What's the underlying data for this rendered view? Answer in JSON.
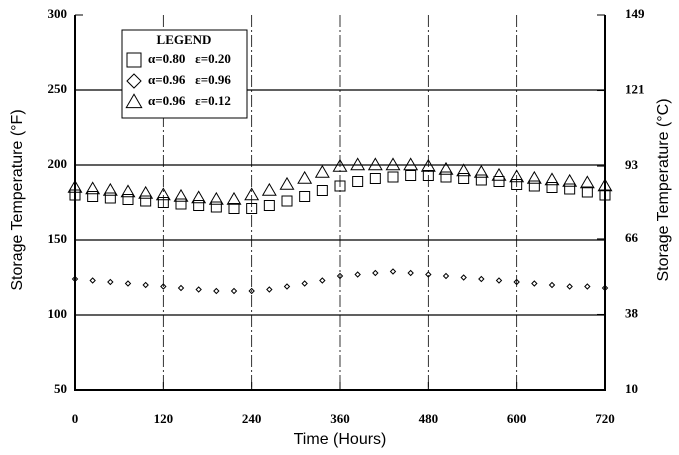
{
  "chart_data": {
    "type": "scatter",
    "x_label": "Time (Hours)",
    "y_label": "Storage Temperature (°F)",
    "y2_label": "Storage Temperature (°C)",
    "legend_title": "LEGEND",
    "x": [
      0,
      24,
      48,
      72,
      96,
      120,
      144,
      168,
      192,
      216,
      240,
      264,
      288,
      312,
      336,
      360,
      384,
      408,
      432,
      456,
      480,
      504,
      528,
      552,
      576,
      600,
      624,
      648,
      672,
      696,
      720
    ],
    "xlim": [
      0,
      720
    ],
    "xticks": [
      0,
      120,
      240,
      360,
      480,
      600,
      720
    ],
    "ylim": [
      50,
      300
    ],
    "yticks": [
      50,
      100,
      150,
      200,
      250,
      300
    ],
    "y2lim": [
      10,
      149
    ],
    "y2ticks": [
      10,
      38,
      66,
      93,
      121,
      149
    ],
    "grid": true,
    "series": [
      {
        "name": "α=0.80   ε=0.20",
        "color": "#000000",
        "marker": "square",
        "values": [
          180,
          179,
          178,
          177,
          176,
          175,
          174,
          173,
          172,
          171,
          171,
          173,
          176,
          179,
          183,
          186,
          189,
          191,
          192,
          193,
          193,
          192,
          191,
          190,
          189,
          187,
          186,
          185,
          184,
          182,
          180
        ]
      },
      {
        "name": "α=0.96   ε=0.96",
        "color": "#000000",
        "marker": "diamond",
        "values": [
          124,
          123,
          122,
          121,
          120,
          119,
          118,
          117,
          116,
          116,
          116,
          117,
          119,
          121,
          123,
          126,
          127,
          128,
          129,
          128,
          127,
          126,
          125,
          124,
          123,
          122,
          121,
          120,
          119,
          119,
          118
        ]
      },
      {
        "name": "α=0.96   ε=0.12",
        "color": "#000000",
        "marker": "triangle",
        "values": [
          185,
          184,
          183,
          182,
          181,
          180,
          179,
          178,
          177,
          177,
          180,
          183,
          187,
          191,
          195,
          199,
          200,
          200,
          200,
          200,
          199,
          197,
          196,
          195,
          193,
          192,
          191,
          190,
          189,
          188,
          186
        ]
      }
    ]
  }
}
